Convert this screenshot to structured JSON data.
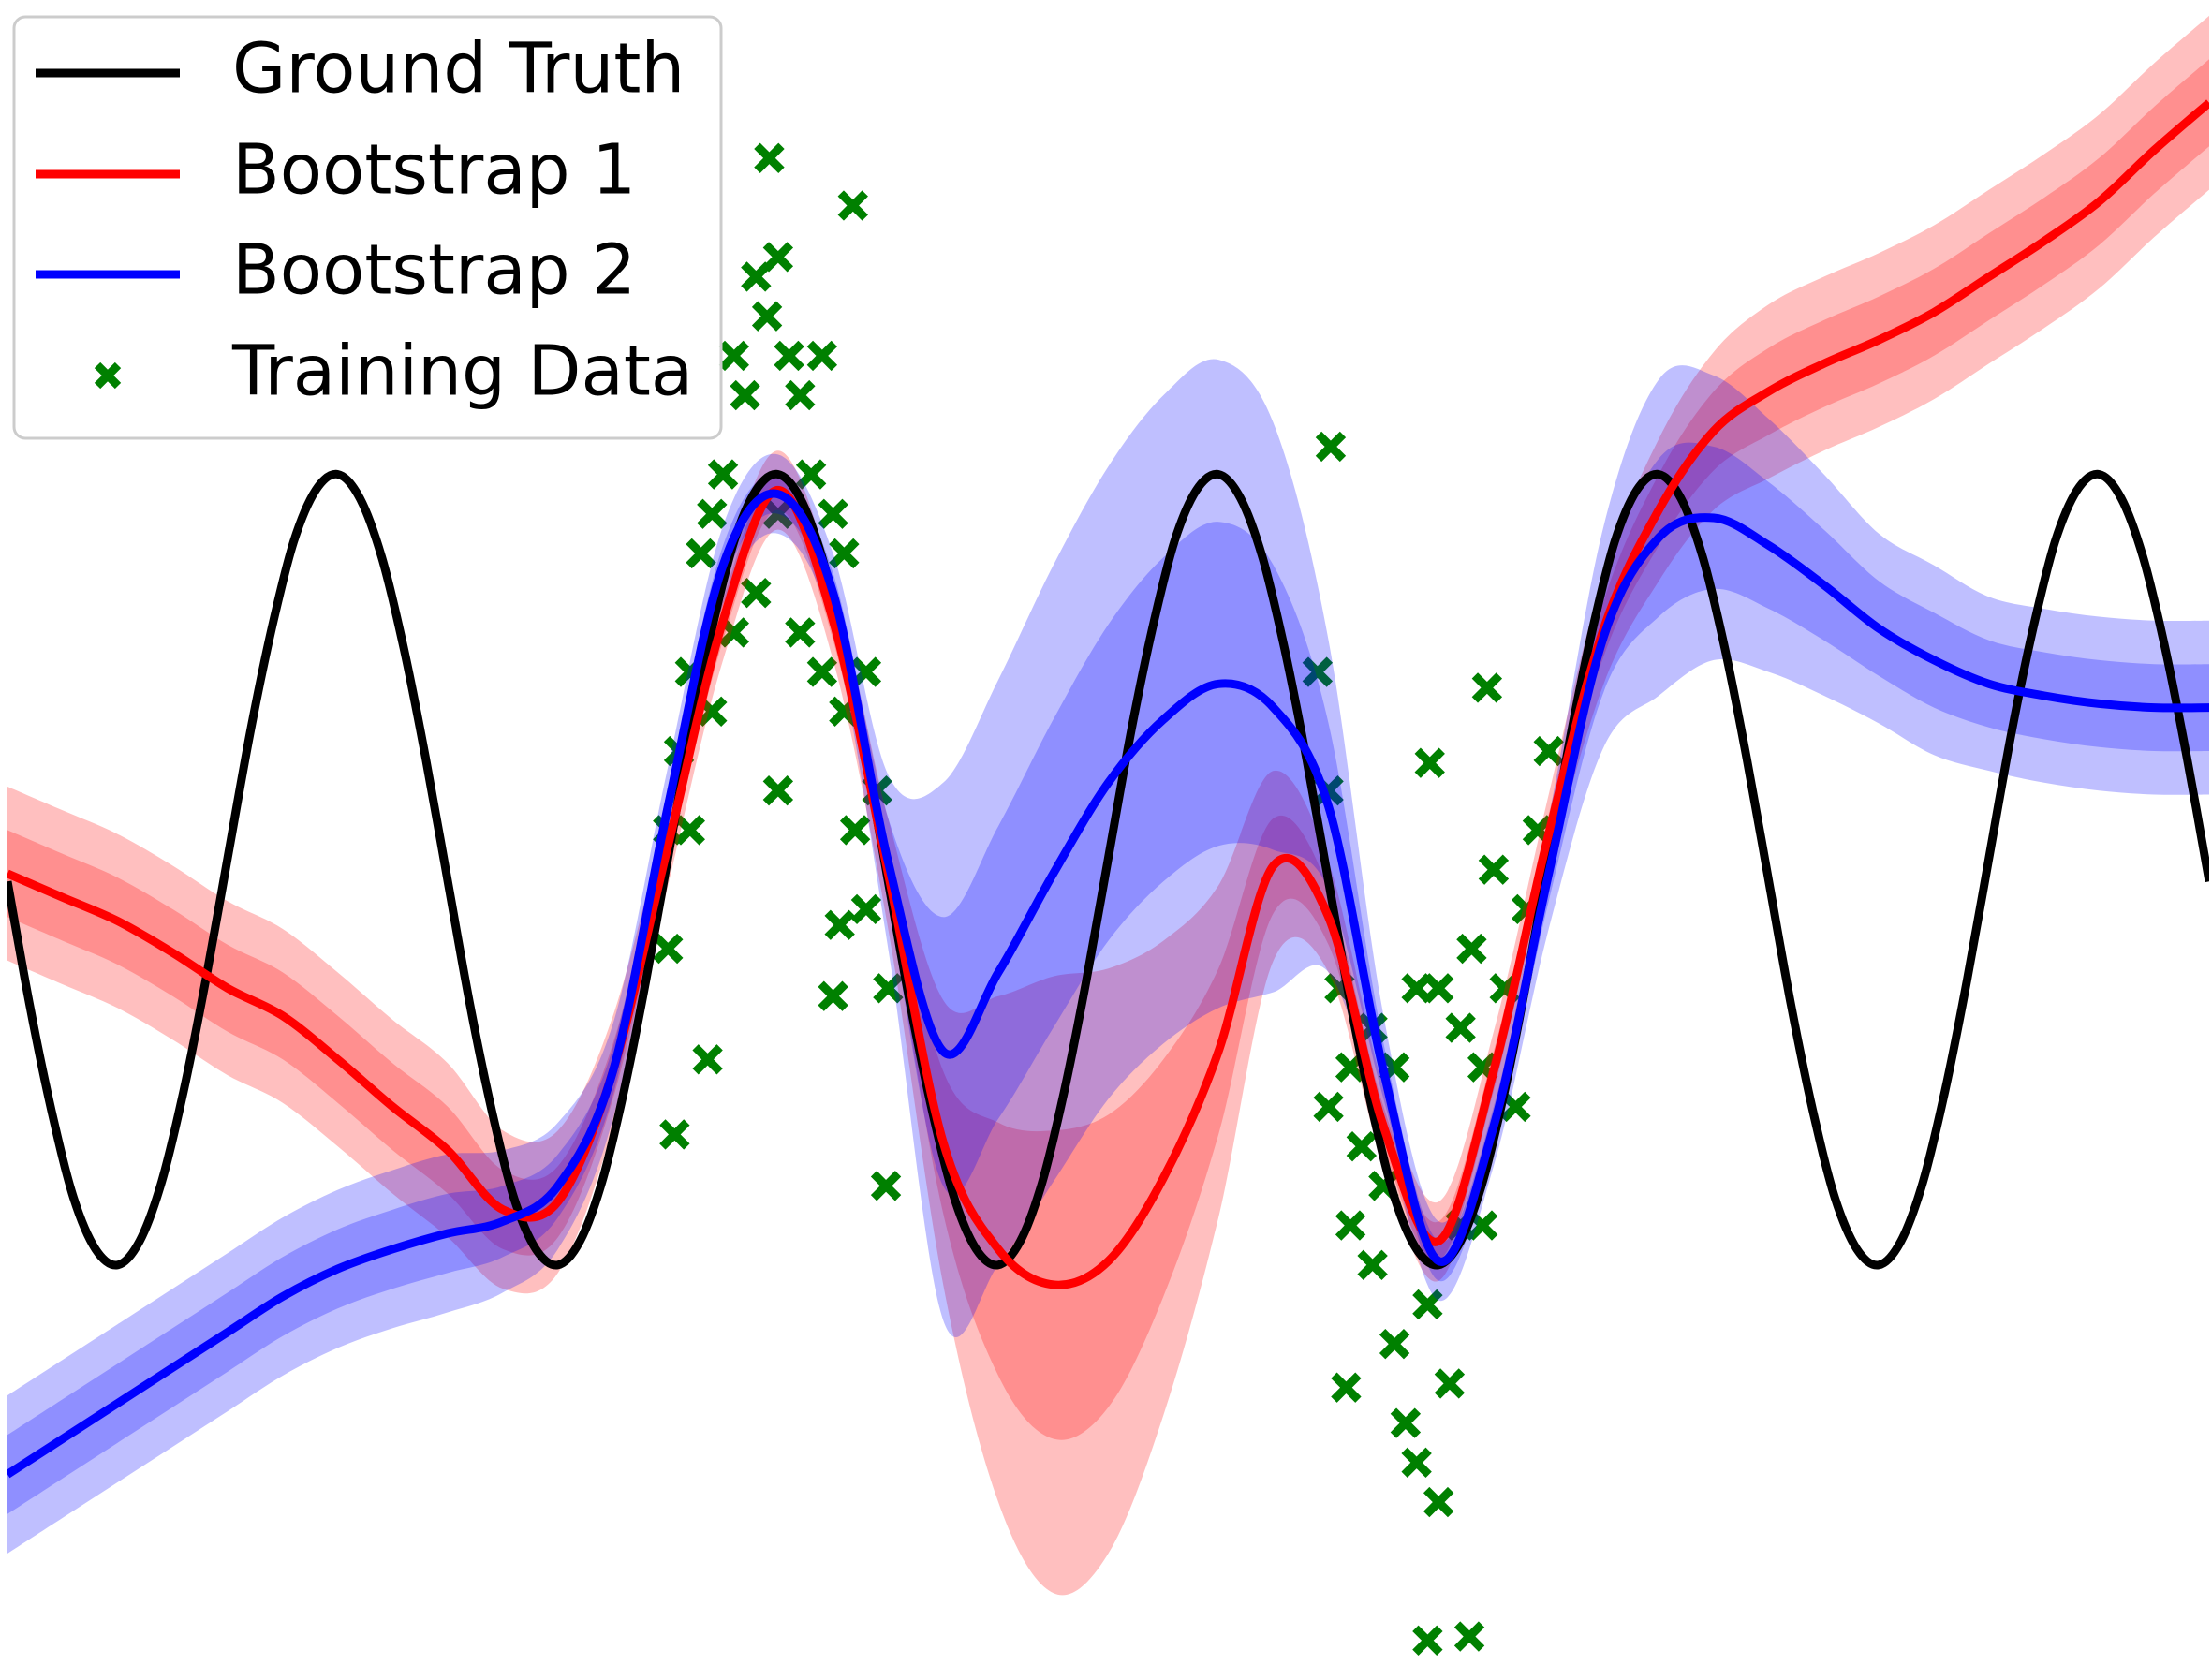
{
  "chart_data": {
    "type": "line",
    "xlim": [
      -5,
      5
    ],
    "ylim": [
      -2.05,
      2.2
    ],
    "legend": "upper left",
    "series": [
      {
        "name": "Ground Truth",
        "color": "#000000",
        "x": [
          -5,
          -4.9,
          -4.8,
          -4.7,
          -4.6,
          -4.5,
          -4.4,
          -4.3,
          -4.2,
          -4.1,
          -4,
          -3.9,
          -3.8,
          -3.7,
          -3.6,
          -3.5,
          -3.4,
          -3.3,
          -3.2,
          -3.1,
          -3,
          -2.9,
          -2.8,
          -2.7,
          -2.6,
          -2.5,
          -2.4,
          -2.3,
          -2.2,
          -2.1,
          -2,
          -1.9,
          -1.8,
          -1.7,
          -1.6,
          -1.5,
          -1.4,
          -1.3,
          -1.2,
          -1.1,
          -1,
          -0.9,
          -0.8,
          -0.7,
          -0.6,
          -0.5,
          -0.4,
          -0.3,
          -0.2,
          -0.1,
          0,
          0.1,
          0.2,
          0.3,
          0.4,
          0.5,
          0.6,
          0.7,
          0.8,
          0.9,
          1,
          1.1,
          1.2,
          1.3,
          1.4,
          1.5,
          1.6,
          1.7,
          1.8,
          1.9,
          2,
          2.1,
          2.2,
          2.3,
          2.4,
          2.5,
          2.6,
          2.7,
          2.8,
          2.9,
          3,
          3.1,
          3.2,
          3.3,
          3.4,
          3.5,
          3.6,
          3.7,
          3.8,
          3.9,
          4,
          4.1,
          4.2,
          4.3,
          4.4,
          4.5,
          4.6,
          4.7,
          4.8,
          4.9,
          5
        ],
        "values": [
          -0.03,
          -0.34,
          -0.61,
          -0.83,
          -0.96,
          -1,
          -0.94,
          -0.79,
          -0.56,
          -0.28,
          0.03,
          0.34,
          0.61,
          0.83,
          0.96,
          1,
          0.94,
          0.79,
          0.56,
          0.28,
          -0.03,
          -0.34,
          -0.61,
          -0.83,
          -0.96,
          -1,
          -0.94,
          -0.79,
          -0.56,
          -0.28,
          0.03,
          0.34,
          0.61,
          0.83,
          0.96,
          1,
          0.94,
          0.79,
          0.56,
          0.28,
          -0.03,
          -0.34,
          -0.61,
          -0.83,
          -0.96,
          -1,
          -0.94,
          -0.79,
          -0.56,
          -0.28,
          0.03,
          0.34,
          0.61,
          0.83,
          0.96,
          1,
          0.94,
          0.79,
          0.56,
          0.28,
          -0.03,
          -0.34,
          -0.61,
          -0.83,
          -0.96,
          -1,
          -0.94,
          -0.79,
          -0.56,
          -0.28,
          0.03,
          0.34,
          0.61,
          0.83,
          0.96,
          1,
          0.94,
          0.79,
          0.56,
          0.28,
          -0.03,
          -0.34,
          -0.61,
          -0.83,
          -0.96,
          -1,
          -0.94,
          -0.79,
          -0.56,
          -0.28,
          0.03,
          0.34,
          0.61,
          0.83,
          0.96,
          1,
          0.94,
          0.79,
          0.56,
          0.28,
          -0.03
        ]
      },
      {
        "name": "Bootstrap 1",
        "color": "#ff0000",
        "x": [
          -5,
          -4.75,
          -4.5,
          -4.25,
          -4,
          -3.75,
          -3.5,
          -3.25,
          -3,
          -2.75,
          -2.5,
          -2.25,
          -2,
          -1.75,
          -1.5,
          -1.25,
          -1,
          -0.75,
          -0.5,
          -0.25,
          0,
          0.25,
          0.5,
          0.75,
          1,
          1.25,
          1.5,
          1.75,
          2,
          2.25,
          2.5,
          2.75,
          3,
          3.25,
          3.5,
          3.75,
          4,
          4.25,
          4.5,
          4.75,
          5
        ],
        "values": [
          -0.01,
          -0.07,
          -0.13,
          -0.21,
          -0.3,
          -0.37,
          -0.48,
          -0.6,
          -0.71,
          -0.86,
          -0.84,
          -0.51,
          0.06,
          0.63,
          0.96,
          0.63,
          -0.01,
          -0.69,
          -0.96,
          -1.05,
          -0.99,
          -0.78,
          -0.46,
          0.01,
          -0.12,
          -0.65,
          -0.94,
          -0.51,
          0.09,
          0.61,
          0.91,
          1.11,
          1.21,
          1.28,
          1.34,
          1.41,
          1.5,
          1.59,
          1.69,
          1.82,
          1.94
        ],
        "std": [
          0.11,
          0.11,
          0.11,
          0.11,
          0.11,
          0.11,
          0.11,
          0.11,
          0.11,
          0.1,
          0.09,
          0.07,
          0.05,
          0.05,
          0.05,
          0.05,
          0.07,
          0.18,
          0.32,
          0.39,
          0.37,
          0.3,
          0.21,
          0.12,
          0.07,
          0.05,
          0.05,
          0.05,
          0.05,
          0.07,
          0.09,
          0.1,
          0.11,
          0.11,
          0.11,
          0.11,
          0.11,
          0.11,
          0.11,
          0.11,
          0.11
        ]
      },
      {
        "name": "Bootstrap 2",
        "color": "#0000ff",
        "x": [
          -5,
          -4.75,
          -4.5,
          -4.25,
          -4,
          -3.75,
          -3.5,
          -3.25,
          -3,
          -2.75,
          -2.5,
          -2.25,
          -2,
          -1.75,
          -1.5,
          -1.25,
          -1,
          -0.75,
          -0.5,
          -0.25,
          0,
          0.25,
          0.5,
          0.75,
          1,
          1.25,
          1.5,
          1.75,
          2,
          2.25,
          2.5,
          2.75,
          3,
          3.25,
          3.5,
          3.75,
          4,
          4.25,
          4.5,
          4.75,
          5
        ],
        "values": [
          -1.53,
          -1.44,
          -1.35,
          -1.26,
          -1.17,
          -1.08,
          -1.01,
          -0.96,
          -0.92,
          -0.89,
          -0.8,
          -0.51,
          0.16,
          0.77,
          0.95,
          0.7,
          0.02,
          -0.46,
          -0.26,
          -0.01,
          0.22,
          0.38,
          0.47,
          0.41,
          0.16,
          -0.51,
          -0.99,
          -0.65,
          -0.01,
          0.59,
          0.84,
          0.89,
          0.82,
          0.72,
          0.61,
          0.53,
          0.47,
          0.44,
          0.42,
          0.41,
          0.41
        ],
        "std": [
          0.1,
          0.1,
          0.1,
          0.1,
          0.1,
          0.1,
          0.1,
          0.1,
          0.1,
          0.09,
          0.08,
          0.06,
          0.05,
          0.05,
          0.05,
          0.05,
          0.11,
          0.34,
          0.37,
          0.39,
          0.4,
          0.41,
          0.41,
          0.36,
          0.21,
          0.07,
          0.05,
          0.05,
          0.07,
          0.14,
          0.2,
          0.18,
          0.16,
          0.14,
          0.12,
          0.12,
          0.11,
          0.11,
          0.11,
          0.11,
          0.11
        ]
      },
      {
        "name": "Training Data",
        "type": "scatter",
        "color": "#008000",
        "marker": "x",
        "x": [
          -2,
          -2,
          -1.95,
          -1.9,
          -1.9,
          -1.85,
          -1.8,
          -1.8,
          -1.75,
          -1.7,
          -1.7,
          -1.65,
          -1.6,
          -1.6,
          -1.55,
          -1.5,
          -1.5,
          -1.45,
          -1.4,
          -1.4,
          -1.35,
          -1.3,
          -1.3,
          -1.25,
          -1.2,
          -1.2,
          -1.15,
          -1.1,
          -1.1,
          -1.05,
          -1,
          0.95,
          1,
          1,
          1.05,
          1.1,
          1.1,
          1.15,
          1.2,
          1.2,
          1.25,
          1.3,
          1.3,
          1.35,
          1.4,
          1.4,
          1.45,
          1.5,
          1.5,
          1.55,
          1.6,
          1.6,
          1.65,
          1.7,
          1.7,
          1.75,
          1.8,
          1.85,
          1.9,
          1.95,
          2,
          -1.54,
          -1.16,
          1.01,
          1.72,
          1.46,
          1.08,
          1.45,
          1.64,
          -1.97,
          -1.82,
          -1.25,
          -1.01,
          -1.5,
          -1.22
        ],
        "values": [
          0.1,
          -0.2,
          0.3,
          0.5,
          0.1,
          0.8,
          0.4,
          0.9,
          1,
          1.3,
          0.6,
          1.2,
          1.5,
          0.7,
          1.4,
          0.9,
          1.55,
          1.3,
          0.6,
          1.2,
          1,
          1.3,
          0.5,
          0.9,
          0.4,
          0.8,
          0.1,
          0.5,
          -0.1,
          0.2,
          -0.3,
          0.5,
          0.2,
          -0.6,
          -0.3,
          -0.5,
          -0.9,
          -0.7,
          -0.4,
          -1,
          -0.8,
          -1.2,
          -0.5,
          -1.4,
          -0.3,
          -1.5,
          -1.1,
          -1.6,
          -0.3,
          -1.3,
          -0.4,
          -0.9,
          -0.2,
          -0.5,
          -0.9,
          0,
          -0.3,
          -0.6,
          -0.1,
          0.1,
          0.3,
          1.8,
          1.68,
          1.07,
          0.46,
          0.27,
          -1.31,
          -1.95,
          -1.94,
          -0.67,
          -0.48,
          -0.32,
          -0.8,
          0.2,
          -0.14
        ]
      }
    ]
  }
}
